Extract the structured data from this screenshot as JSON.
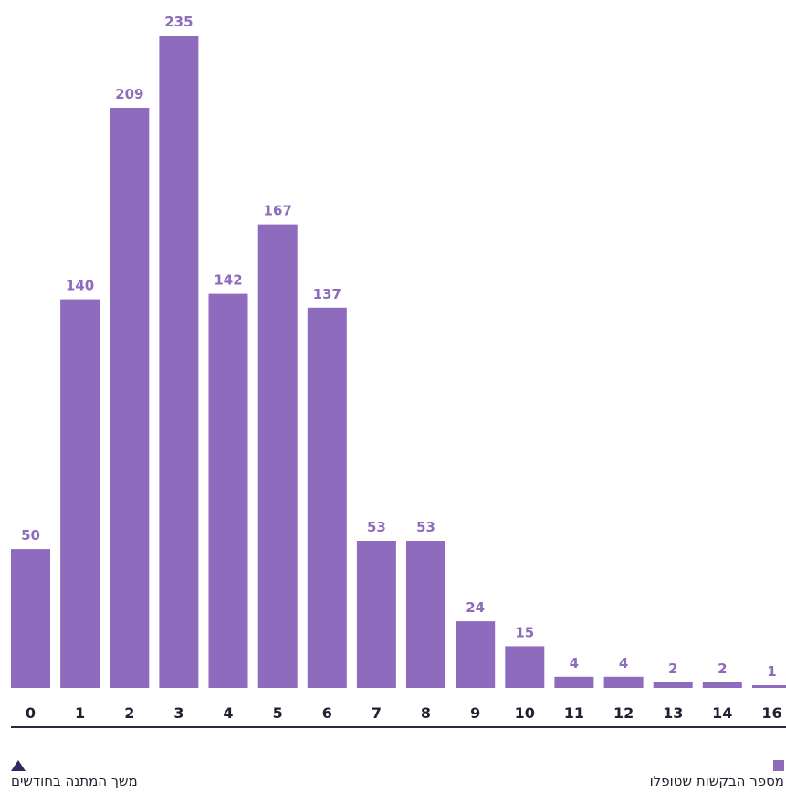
{
  "colors": {
    "bar": "#8e6bbd",
    "value_label": "#8e6bbd",
    "tick_label": "#1f2130",
    "axis_line": "#2b2a3a",
    "triangle_marker": "#2b2a63"
  },
  "legend": {
    "bars_label": "מספר הבקשות שטופלו",
    "marker_label": "משך המתנה בחודשים"
  },
  "chart_data": {
    "type": "bar",
    "categories": [
      "0",
      "1",
      "2",
      "3",
      "4",
      "5",
      "6",
      "7",
      "8",
      "9",
      "10",
      "11",
      "12",
      "13",
      "14",
      "16"
    ],
    "series": [
      {
        "name": "מספר הבקשות שטופלו",
        "values": [
          50,
          140,
          209,
          235,
          142,
          167,
          137,
          53,
          53,
          24,
          15,
          4,
          4,
          2,
          2,
          1
        ]
      }
    ],
    "xlabel": "משך המתנה בחודשים",
    "ylabel": "",
    "ylim": [
      0,
      235
    ],
    "grid": false,
    "legend_placement": "bottom"
  }
}
